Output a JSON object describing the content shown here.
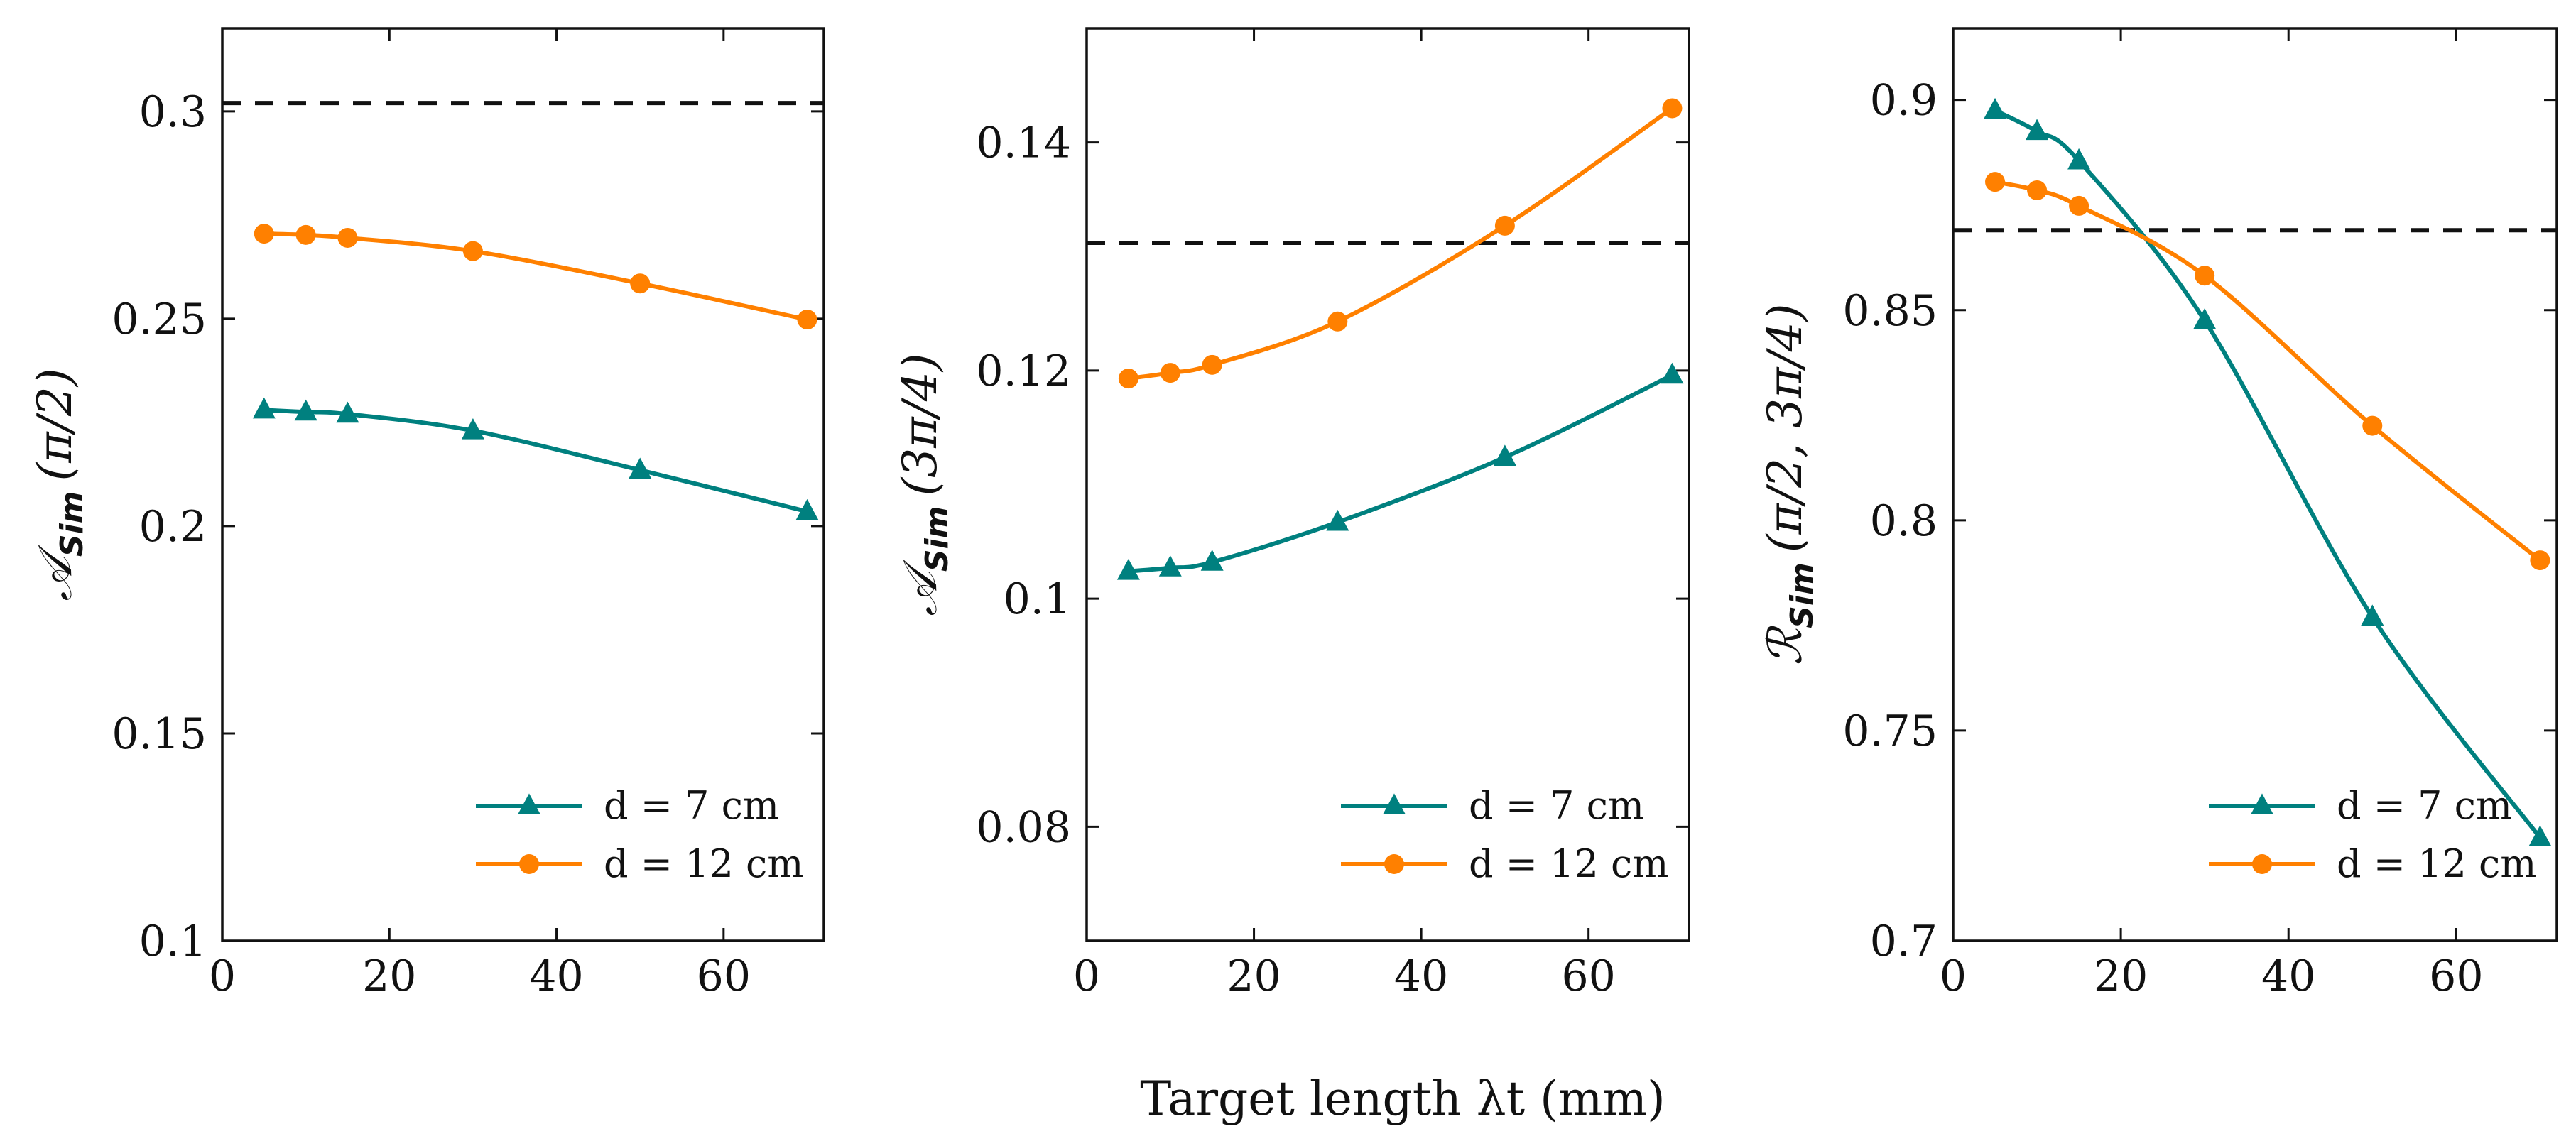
{
  "figure": {
    "shared_xlabel": "Target length λt (mm)"
  },
  "chart_data": [
    {
      "type": "line",
      "ylabel_main": "𝒜",
      "ylabel_sub": "Sim",
      "ylabel_arg": "(π/2)",
      "x": [
        5,
        10,
        15,
        30,
        50,
        70
      ],
      "xlim": [
        0,
        72
      ],
      "ylim": [
        0.1,
        0.32
      ],
      "xticks": [
        0,
        20,
        40,
        60
      ],
      "yticks": [
        0.1,
        0.15,
        0.2,
        0.25,
        0.3
      ],
      "ytick_labels": [
        "0.1",
        "0.15",
        "0.2",
        "0.25",
        "0.3"
      ],
      "reference_line": 0.302,
      "series": [
        {
          "name": "d = 7 cm",
          "marker": "triangle",
          "color": "#00807f",
          "values": [
            0.228,
            0.2275,
            0.227,
            0.223,
            0.2135,
            0.2035
          ]
        },
        {
          "name": "d = 12 cm",
          "marker": "circle",
          "color": "#ff8000",
          "values": [
            0.2705,
            0.2702,
            0.2695,
            0.2663,
            0.2585,
            0.2498
          ]
        }
      ],
      "legend_position": "bottom-right"
    },
    {
      "type": "line",
      "ylabel_main": "𝒜",
      "ylabel_sub": "Sim",
      "ylabel_arg": "(3π/4)",
      "x": [
        5,
        10,
        15,
        30,
        50,
        70
      ],
      "xlim": [
        0,
        72
      ],
      "ylim": [
        0.07,
        0.15
      ],
      "xticks": [
        0,
        20,
        40,
        60
      ],
      "yticks": [
        0.08,
        0.1,
        0.12,
        0.14
      ],
      "ytick_labels": [
        "0.08",
        "0.1",
        "0.12",
        "0.14"
      ],
      "reference_line": 0.1312,
      "series": [
        {
          "name": "d = 7 cm",
          "marker": "triangle",
          "color": "#00807f",
          "values": [
            0.1024,
            0.1027,
            0.1032,
            0.1067,
            0.1124,
            0.1196
          ]
        },
        {
          "name": "d = 12 cm",
          "marker": "circle",
          "color": "#ff8000",
          "values": [
            0.1193,
            0.1198,
            0.1205,
            0.1243,
            0.1327,
            0.143
          ]
        }
      ],
      "legend_position": "bottom-right"
    },
    {
      "type": "line",
      "ylabel_main": "ℛ",
      "ylabel_sub": "Sim",
      "ylabel_arg": "(π/2, 3π/4)",
      "x": [
        5,
        10,
        15,
        30,
        50,
        70
      ],
      "xlim": [
        0,
        72
      ],
      "ylim": [
        0.7,
        0.917
      ],
      "xticks": [
        0,
        20,
        40,
        60
      ],
      "yticks": [
        0.7,
        0.75,
        0.8,
        0.85,
        0.9
      ],
      "ytick_labels": [
        "0.7",
        "0.75",
        "0.8",
        "0.85",
        "0.9"
      ],
      "reference_line": 0.869,
      "series": [
        {
          "name": "d = 7 cm",
          "marker": "triangle",
          "color": "#00807f",
          "values": [
            0.8975,
            0.8925,
            0.8855,
            0.8475,
            0.777,
            0.7245
          ]
        },
        {
          "name": "d = 12 cm",
          "marker": "circle",
          "color": "#ff8000",
          "values": [
            0.8805,
            0.8785,
            0.8748,
            0.8582,
            0.8225,
            0.7905
          ]
        }
      ],
      "legend_position": "bottom-right"
    }
  ]
}
